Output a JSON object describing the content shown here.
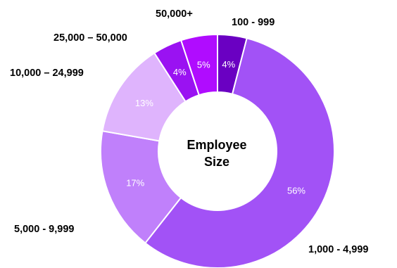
{
  "chart_data": {
    "type": "pie",
    "center_label": [
      "Employee",
      "Size"
    ],
    "slices": [
      {
        "label": "100 - 999",
        "value": 4,
        "pct_label": "4%",
        "color": "#6a00c2"
      },
      {
        "label": "1,000 - 4,999",
        "value": 56,
        "pct_label": "56%",
        "color": "#a252f6"
      },
      {
        "label": "5,000 - 9,999",
        "value": 17,
        "pct_label": "17%",
        "color": "#c080fb"
      },
      {
        "label": "10,000 – 24,999",
        "value": 13,
        "pct_label": "13%",
        "color": "#dfb4fd"
      },
      {
        "label": "25,000 – 50,000",
        "value": 4,
        "pct_label": "4%",
        "color": "#9a12f2"
      },
      {
        "label": "50,000+",
        "value": 5,
        "pct_label": "5%",
        "color": "#b00cff"
      }
    ]
  }
}
